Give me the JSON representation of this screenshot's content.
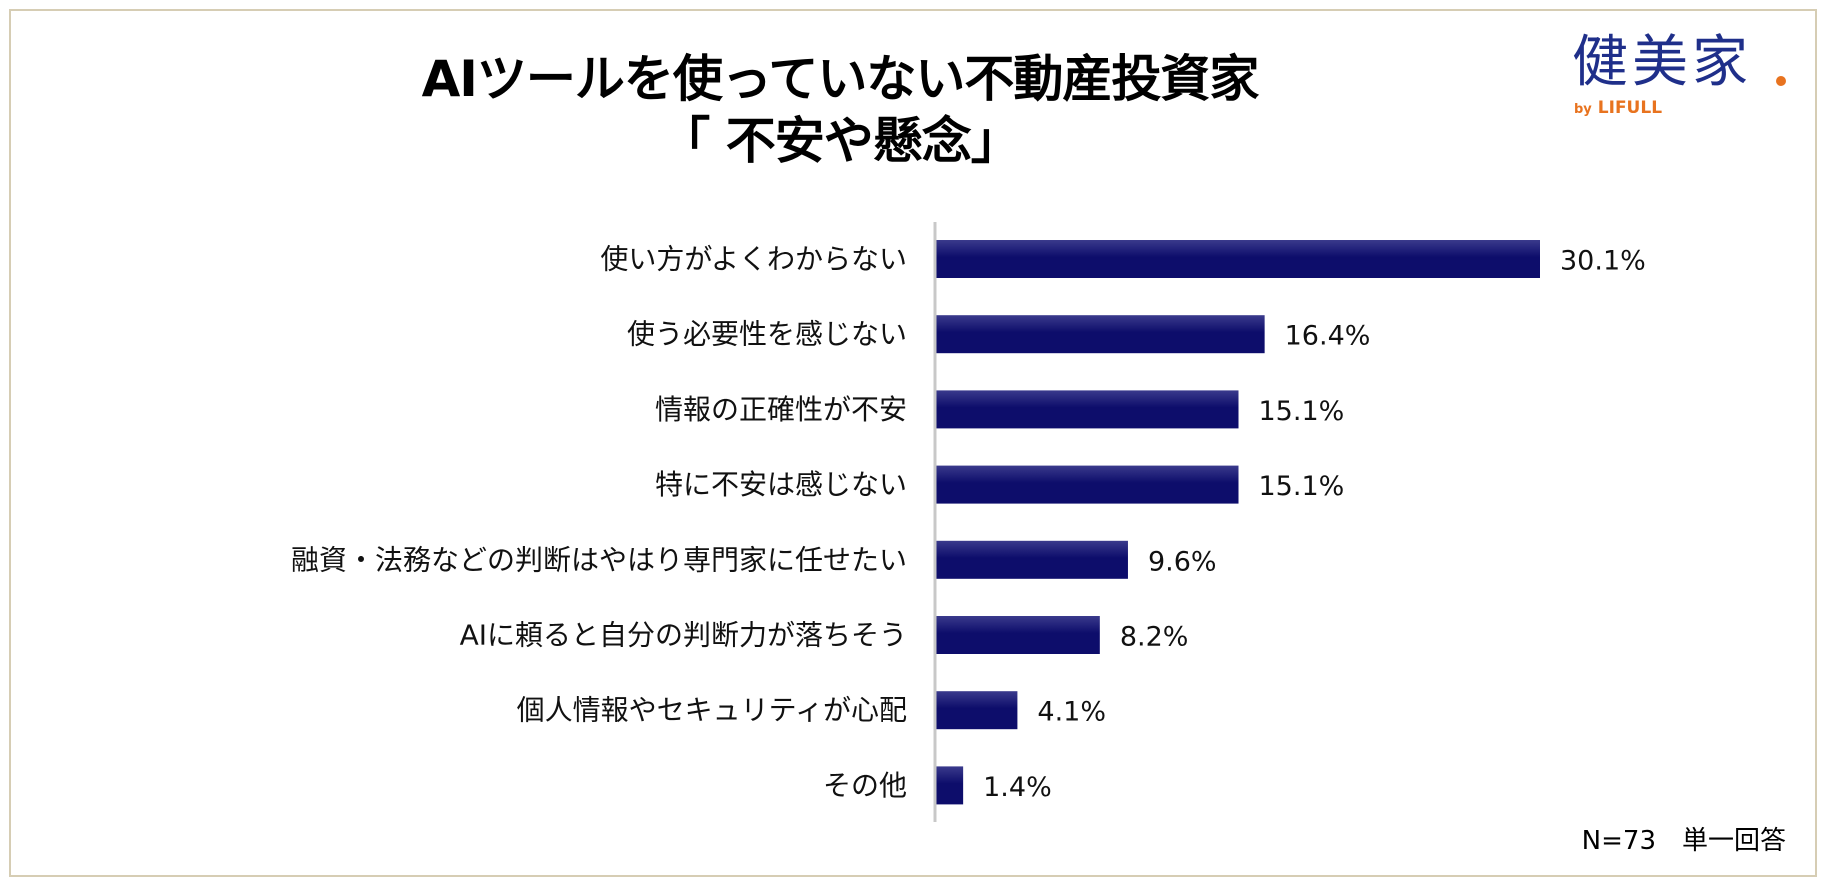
{
  "title": {
    "line1": "AIツールを使っていない不動産投資家",
    "line2": "「 不安や懸念」"
  },
  "logo": {
    "main": "健美家",
    "by": "by",
    "brand": "LIFULL",
    "colors": {
      "main": "#1f2f8a",
      "accent": "#e8731f"
    }
  },
  "footnote": "N=73　単一回答",
  "chart_data": {
    "type": "bar",
    "orientation": "horizontal",
    "categories": [
      "使い方がよくわからない",
      "使う必要性を感じない",
      "情報の正確性が不安",
      "特に不安は感じない",
      "融資・法務などの判断はやはり専門家に任せたい",
      "AIに頼ると自分の判断力が落ちそう",
      "個人情報やセキュリティが心配",
      "その他"
    ],
    "values": [
      30.1,
      16.4,
      15.1,
      15.1,
      9.6,
      8.2,
      4.1,
      1.4
    ],
    "value_labels": [
      "30.1%",
      "16.4%",
      "15.1%",
      "15.1%",
      "9.6%",
      "8.2%",
      "4.1%",
      "1.4%"
    ],
    "unit": "%",
    "bar_color": "#0d0d6b",
    "bar_highlight": "#3a3a8c",
    "axis_color": "#c8c8c8",
    "grid": false,
    "legend": "none"
  }
}
